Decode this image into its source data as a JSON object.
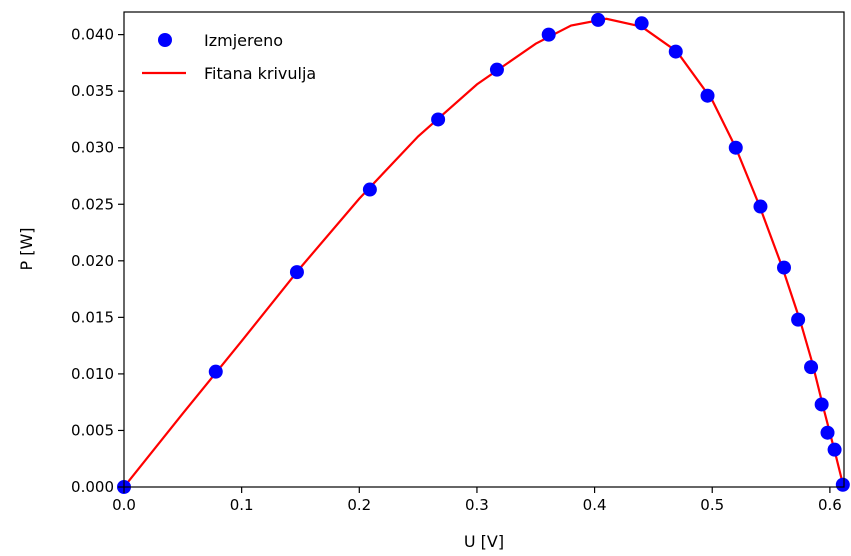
{
  "chart_data": {
    "type": "scatter",
    "xlabel": "U [V]",
    "ylabel": "P [W]",
    "xlim": [
      0.0,
      0.612
    ],
    "ylim": [
      0.0,
      0.042
    ],
    "grid": false,
    "legend_position": "top-left",
    "x_ticks": [
      {
        "value": 0.0,
        "label": "0.0"
      },
      {
        "value": 0.1,
        "label": "0.1"
      },
      {
        "value": 0.2,
        "label": "0.2"
      },
      {
        "value": 0.3,
        "label": "0.3"
      },
      {
        "value": 0.4,
        "label": "0.4"
      },
      {
        "value": 0.5,
        "label": "0.5"
      },
      {
        "value": 0.6,
        "label": "0.6"
      }
    ],
    "y_ticks": [
      {
        "value": 0.0,
        "label": "0.000"
      },
      {
        "value": 0.005,
        "label": "0.005"
      },
      {
        "value": 0.01,
        "label": "0.010"
      },
      {
        "value": 0.015,
        "label": "0.015"
      },
      {
        "value": 0.02,
        "label": "0.020"
      },
      {
        "value": 0.025,
        "label": "0.025"
      },
      {
        "value": 0.03,
        "label": "0.030"
      },
      {
        "value": 0.035,
        "label": "0.035"
      },
      {
        "value": 0.04,
        "label": "0.040"
      }
    ],
    "series": [
      {
        "name": "Izmjereno",
        "kind": "scatter",
        "color": "#0000ff",
        "points": [
          [
            0.0,
            0.0
          ],
          [
            0.078,
            0.0102
          ],
          [
            0.147,
            0.019
          ],
          [
            0.209,
            0.0263
          ],
          [
            0.267,
            0.0325
          ],
          [
            0.317,
            0.0369
          ],
          [
            0.361,
            0.04
          ],
          [
            0.403,
            0.0413
          ],
          [
            0.44,
            0.041
          ],
          [
            0.469,
            0.0385
          ],
          [
            0.496,
            0.0346
          ],
          [
            0.52,
            0.03
          ],
          [
            0.541,
            0.0248
          ],
          [
            0.561,
            0.0194
          ],
          [
            0.573,
            0.0148
          ],
          [
            0.584,
            0.0106
          ],
          [
            0.593,
            0.0073
          ],
          [
            0.598,
            0.0048
          ],
          [
            0.604,
            0.0033
          ],
          [
            0.611,
            0.0002
          ]
        ]
      },
      {
        "name": "Fitana krivulja",
        "kind": "line",
        "color": "#ff0000",
        "points": [
          [
            0.0,
            0.0
          ],
          [
            0.05,
            0.0065
          ],
          [
            0.1,
            0.0129
          ],
          [
            0.15,
            0.0194
          ],
          [
            0.2,
            0.0255
          ],
          [
            0.25,
            0.031
          ],
          [
            0.3,
            0.0356
          ],
          [
            0.35,
            0.0392
          ],
          [
            0.38,
            0.0408
          ],
          [
            0.41,
            0.0414
          ],
          [
            0.44,
            0.0407
          ],
          [
            0.47,
            0.0385
          ],
          [
            0.5,
            0.0342
          ],
          [
            0.52,
            0.03
          ],
          [
            0.54,
            0.0249
          ],
          [
            0.56,
            0.0193
          ],
          [
            0.575,
            0.0146
          ],
          [
            0.585,
            0.011
          ],
          [
            0.595,
            0.0068
          ],
          [
            0.605,
            0.0028
          ],
          [
            0.61,
            0.0007
          ],
          [
            0.612,
            0.0
          ]
        ]
      }
    ]
  }
}
